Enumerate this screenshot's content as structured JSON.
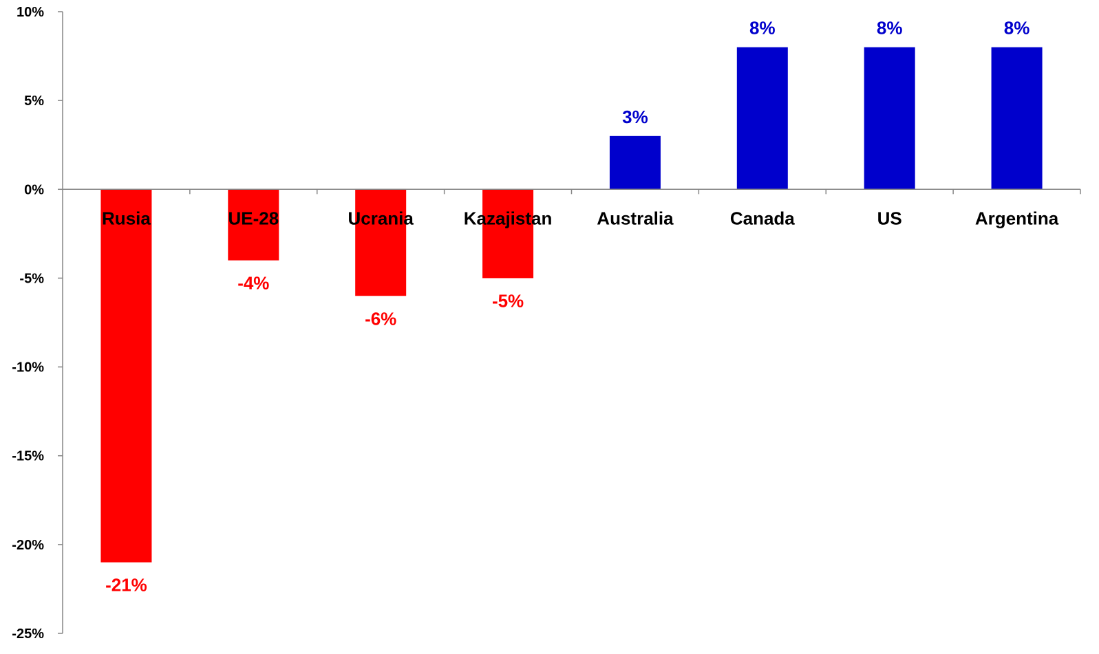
{
  "chart_data": {
    "type": "bar",
    "categories": [
      "Rusia",
      "UE-28",
      "Ucrania",
      "Kazajistan",
      "Australia",
      "Canada",
      "US",
      "Argentina"
    ],
    "values": [
      -21,
      -4,
      -6,
      -5,
      3,
      8,
      8,
      8
    ],
    "data_labels": [
      "-21%",
      "-4%",
      "-6%",
      "-5%",
      "3%",
      "8%",
      "8%",
      "8%"
    ],
    "ylim": [
      -25,
      10
    ],
    "yticks": [
      10,
      5,
      0,
      -5,
      -10,
      -15,
      -20,
      -25
    ],
    "ytick_labels": [
      "10%",
      "5%",
      "0%",
      "-5%",
      "-10%",
      "-15%",
      "-20%",
      "-25%"
    ],
    "grid": false,
    "legend": "none",
    "colors": {
      "positive": "#0000CC",
      "negative": "#FF0000",
      "axis": "#868686",
      "text": "#000000"
    }
  }
}
